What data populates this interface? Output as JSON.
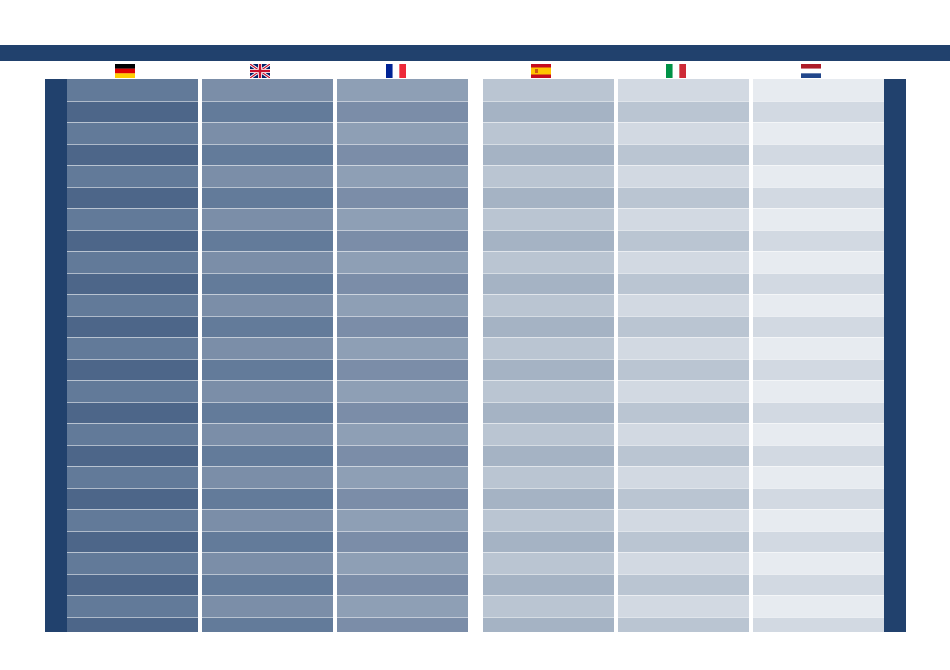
{
  "flags": [
    "germany-flag",
    "united-kingdom-flag",
    "france-flag",
    "spain-flag",
    "italy-flag",
    "netherlands-flag"
  ],
  "row_count": 26,
  "colors": {
    "navy": "#21416d",
    "background": "#ffffff",
    "columns": [
      {
        "light": "#627a99",
        "dark": "#4d6689"
      },
      {
        "light": "#7b8ea8",
        "dark": "#637b9a"
      },
      {
        "light": "#8e9fb5",
        "dark": "#7b8da8"
      },
      {
        "light": "#bac5d2",
        "dark": "#a5b3c4"
      },
      {
        "light": "#d2d9e2",
        "dark": "#bac5d2"
      },
      {
        "light": "#e7ebf0",
        "dark": "#d2d9e2"
      }
    ]
  }
}
